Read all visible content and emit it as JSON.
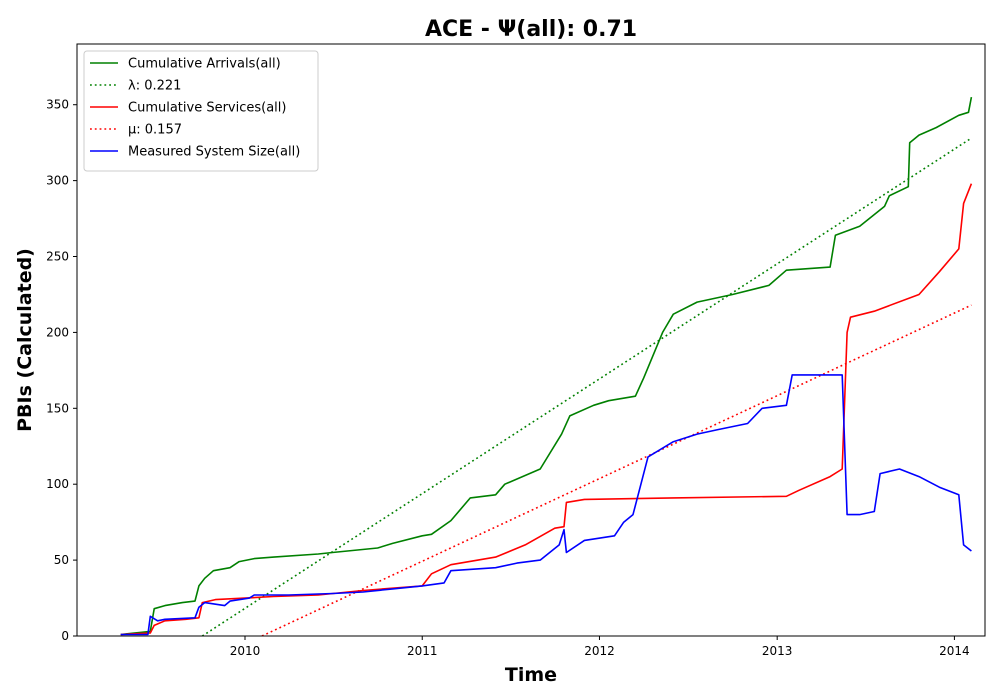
{
  "chart_data": {
    "type": "line",
    "title": "ACE -  Ψ(all): 0.71",
    "xlabel": "Time",
    "ylabel": "PBIs (Calculated)",
    "xlim": [
      "2009-01-20",
      "2014-03-05"
    ],
    "ylim": [
      0,
      390
    ],
    "x_ticks": [
      "2010",
      "2011",
      "2012",
      "2013",
      "2014"
    ],
    "y_ticks": [
      0,
      50,
      100,
      150,
      200,
      250,
      300,
      350
    ],
    "grid": false,
    "legend_position": "top-left",
    "series": [
      {
        "name": "Cumulative Arrivals(all)",
        "style": "solid",
        "color": "#008000",
        "points": [
          [
            "2009-04-20",
            1
          ],
          [
            "2009-06-20",
            3
          ],
          [
            "2009-06-28",
            18
          ],
          [
            "2009-07-20",
            20
          ],
          [
            "2009-08-25",
            22
          ],
          [
            "2009-09-20",
            23
          ],
          [
            "2009-09-28",
            33
          ],
          [
            "2009-10-10",
            38
          ],
          [
            "2009-10-28",
            43
          ],
          [
            "2009-12-01",
            45
          ],
          [
            "2009-12-20",
            49
          ],
          [
            "2010-01-20",
            51
          ],
          [
            "2010-03-01",
            52
          ],
          [
            "2010-06-01",
            54
          ],
          [
            "2010-06-30",
            55
          ],
          [
            "2010-10-01",
            58
          ],
          [
            "2010-11-01",
            61
          ],
          [
            "2011-01-01",
            66
          ],
          [
            "2011-01-20",
            67
          ],
          [
            "2011-03-01",
            76
          ],
          [
            "2011-04-10",
            91
          ],
          [
            "2011-06-01",
            93
          ],
          [
            "2011-06-20",
            100
          ],
          [
            "2011-09-01",
            110
          ],
          [
            "2011-10-15",
            133
          ],
          [
            "2011-11-01",
            145
          ],
          [
            "2011-12-20",
            152
          ],
          [
            "2012-01-20",
            155
          ],
          [
            "2012-03-15",
            158
          ],
          [
            "2012-04-01",
            170
          ],
          [
            "2012-05-10",
            200
          ],
          [
            "2012-06-01",
            212
          ],
          [
            "2012-07-20",
            220
          ],
          [
            "2012-10-01",
            225
          ],
          [
            "2012-12-15",
            231
          ],
          [
            "2013-01-20",
            241
          ],
          [
            "2013-04-20",
            243
          ],
          [
            "2013-05-01",
            264
          ],
          [
            "2013-06-20",
            270
          ],
          [
            "2013-08-10",
            283
          ],
          [
            "2013-08-20",
            290
          ],
          [
            "2013-09-28",
            296
          ],
          [
            "2013-10-01",
            325
          ],
          [
            "2013-10-20",
            330
          ],
          [
            "2013-11-25",
            335
          ],
          [
            "2014-01-10",
            343
          ],
          [
            "2014-01-30",
            345
          ],
          [
            "2014-02-05",
            355
          ]
        ]
      },
      {
        "name": "λ: 0.221",
        "style": "dotted",
        "color": "#008000",
        "points": [
          [
            "2009-10-05",
            0
          ],
          [
            "2014-02-05",
            328
          ]
        ]
      },
      {
        "name": "Cumulative Services(all)",
        "style": "solid",
        "color": "#ff0000",
        "points": [
          [
            "2009-04-20",
            1
          ],
          [
            "2009-06-20",
            2
          ],
          [
            "2009-06-28",
            7
          ],
          [
            "2009-07-20",
            10
          ],
          [
            "2009-09-01",
            11
          ],
          [
            "2009-09-28",
            12
          ],
          [
            "2009-10-05",
            22
          ],
          [
            "2009-11-01",
            24
          ],
          [
            "2010-01-01",
            25
          ],
          [
            "2010-03-01",
            26
          ],
          [
            "2010-06-01",
            27
          ],
          [
            "2010-09-01",
            30
          ],
          [
            "2011-01-01",
            33
          ],
          [
            "2011-01-20",
            41
          ],
          [
            "2011-03-01",
            47
          ],
          [
            "2011-06-01",
            52
          ],
          [
            "2011-08-01",
            60
          ],
          [
            "2011-10-01",
            71
          ],
          [
            "2011-10-20",
            72
          ],
          [
            "2011-10-25",
            88
          ],
          [
            "2011-12-01",
            90
          ],
          [
            "2012-06-01",
            91
          ],
          [
            "2013-01-20",
            92
          ],
          [
            "2013-02-15",
            96
          ],
          [
            "2013-04-20",
            105
          ],
          [
            "2013-05-15",
            110
          ],
          [
            "2013-05-25",
            200
          ],
          [
            "2013-06-01",
            210
          ],
          [
            "2013-07-20",
            214
          ],
          [
            "2013-10-20",
            225
          ],
          [
            "2013-12-01",
            240
          ],
          [
            "2014-01-10",
            255
          ],
          [
            "2014-01-20",
            285
          ],
          [
            "2014-02-05",
            298
          ]
        ]
      },
      {
        "name": "μ: 0.157",
        "style": "dotted",
        "color": "#ff0000",
        "points": [
          [
            "2010-02-05",
            0
          ],
          [
            "2014-02-05",
            218
          ]
        ]
      },
      {
        "name": "Measured System Size(all)",
        "style": "solid",
        "color": "#0000ff",
        "points": [
          [
            "2009-04-20",
            1
          ],
          [
            "2009-06-15",
            1
          ],
          [
            "2009-06-20",
            13
          ],
          [
            "2009-07-05",
            10
          ],
          [
            "2009-07-20",
            11
          ],
          [
            "2009-09-20",
            12
          ],
          [
            "2009-09-28",
            19
          ],
          [
            "2009-10-10",
            22
          ],
          [
            "2009-11-20",
            20
          ],
          [
            "2009-12-01",
            23
          ],
          [
            "2010-01-10",
            25
          ],
          [
            "2010-01-20",
            27
          ],
          [
            "2010-04-01",
            27
          ],
          [
            "2010-07-01",
            28
          ],
          [
            "2010-09-01",
            29
          ],
          [
            "2010-11-01",
            31
          ],
          [
            "2011-01-01",
            33
          ],
          [
            "2011-02-15",
            35
          ],
          [
            "2011-03-01",
            43
          ],
          [
            "2011-06-01",
            45
          ],
          [
            "2011-07-15",
            48
          ],
          [
            "2011-09-01",
            50
          ],
          [
            "2011-10-10",
            60
          ],
          [
            "2011-10-20",
            70
          ],
          [
            "2011-10-25",
            55
          ],
          [
            "2011-12-01",
            63
          ],
          [
            "2012-02-01",
            66
          ],
          [
            "2012-02-20",
            75
          ],
          [
            "2012-03-10",
            80
          ],
          [
            "2012-04-10",
            118
          ],
          [
            "2012-06-01",
            128
          ],
          [
            "2012-07-20",
            133
          ],
          [
            "2012-09-01",
            136
          ],
          [
            "2012-11-01",
            140
          ],
          [
            "2012-12-01",
            150
          ],
          [
            "2013-01-20",
            152
          ],
          [
            "2013-02-01",
            172
          ],
          [
            "2013-05-15",
            172
          ],
          [
            "2013-05-25",
            80
          ],
          [
            "2013-06-20",
            80
          ],
          [
            "2013-07-20",
            82
          ],
          [
            "2013-08-01",
            107
          ],
          [
            "2013-09-10",
            110
          ],
          [
            "2013-10-20",
            105
          ],
          [
            "2013-12-01",
            98
          ],
          [
            "2014-01-10",
            93
          ],
          [
            "2014-01-20",
            60
          ],
          [
            "2014-02-05",
            56
          ]
        ]
      }
    ]
  }
}
